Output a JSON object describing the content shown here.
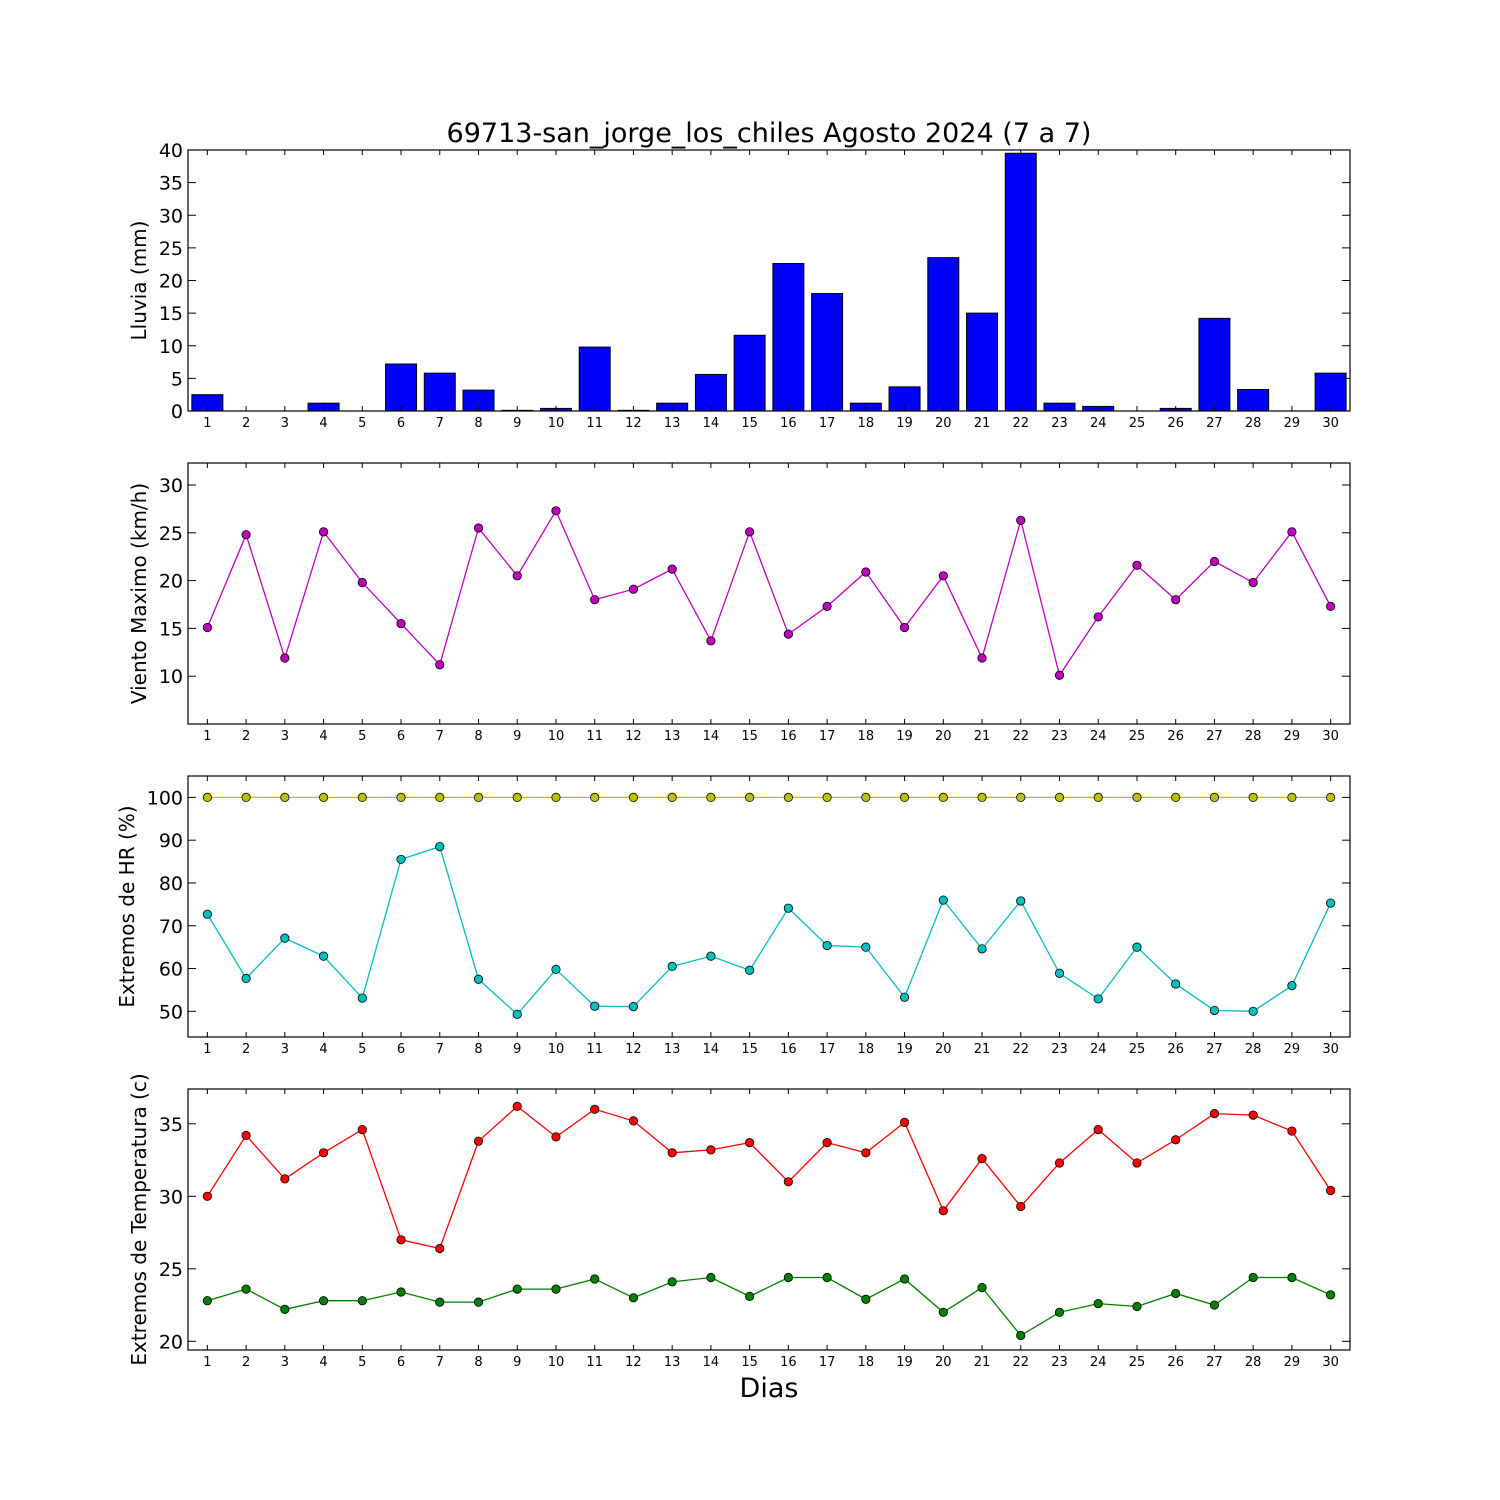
{
  "title": "69713-san_jorge_los_chiles Agosto 2024  (7 a 7)",
  "xlabel": "Dias",
  "chart_data": [
    {
      "type": "bar",
      "ylabel": "Lluvia (mm)",
      "ylim": [
        0,
        40
      ],
      "yticks": [
        0,
        5,
        10,
        15,
        20,
        25,
        30,
        35,
        40
      ],
      "x": [
        1,
        2,
        3,
        4,
        5,
        6,
        7,
        8,
        9,
        10,
        11,
        12,
        13,
        14,
        15,
        16,
        17,
        18,
        19,
        20,
        21,
        22,
        23,
        24,
        25,
        26,
        27,
        28,
        29,
        30
      ],
      "color": "#0000ff",
      "values": [
        2.5,
        0,
        0,
        1.2,
        0,
        7.2,
        5.8,
        3.2,
        0.1,
        0.4,
        9.8,
        0.1,
        1.2,
        5.6,
        11.6,
        22.6,
        18.0,
        1.2,
        3.7,
        23.5,
        15.0,
        39.5,
        1.2,
        0.7,
        0,
        0.4,
        14.2,
        3.3,
        0,
        5.8
      ]
    },
    {
      "type": "line",
      "ylabel": "Viento Maximo (km/h)",
      "ylim": [
        5,
        32.3
      ],
      "yticks": [
        10,
        15,
        20,
        25,
        30
      ],
      "x": [
        1,
        2,
        3,
        4,
        5,
        6,
        7,
        8,
        9,
        10,
        11,
        12,
        13,
        14,
        15,
        16,
        17,
        18,
        19,
        20,
        21,
        22,
        23,
        24,
        25,
        26,
        27,
        28,
        29,
        30
      ],
      "series": [
        {
          "color": "#bf00bf",
          "values": [
            15.1,
            24.8,
            11.9,
            25.1,
            19.8,
            15.5,
            11.2,
            25.5,
            20.5,
            27.3,
            18.0,
            19.1,
            21.2,
            13.7,
            25.1,
            14.4,
            17.3,
            20.9,
            15.1,
            20.5,
            11.9,
            26.3,
            10.1,
            16.2,
            21.6,
            18.0,
            22.0,
            19.8,
            25.1,
            17.3
          ]
        }
      ]
    },
    {
      "type": "line",
      "ylabel": "Extremos de HR (%)",
      "ylim": [
        44,
        105
      ],
      "yticks": [
        50,
        60,
        70,
        80,
        90,
        100
      ],
      "x": [
        1,
        2,
        3,
        4,
        5,
        6,
        7,
        8,
        9,
        10,
        11,
        12,
        13,
        14,
        15,
        16,
        17,
        18,
        19,
        20,
        21,
        22,
        23,
        24,
        25,
        26,
        27,
        28,
        29,
        30
      ],
      "series": [
        {
          "color": "#bfbf00",
          "values": [
            100,
            100,
            100,
            100,
            100,
            100,
            100,
            100,
            100,
            100,
            100,
            100,
            100,
            100,
            100,
            100,
            100,
            100,
            100,
            100,
            100,
            100,
            100,
            100,
            100,
            100,
            100,
            100,
            100,
            100
          ]
        },
        {
          "color": "#00bfbf",
          "values": [
            72.7,
            57.7,
            67.1,
            62.9,
            53.1,
            85.5,
            88.5,
            57.5,
            49.3,
            59.8,
            51.2,
            51.1,
            60.5,
            62.9,
            59.6,
            74.1,
            65.4,
            65.0,
            53.3,
            76.0,
            64.6,
            75.8,
            58.9,
            52.9,
            65.0,
            56.4,
            50.2,
            50.0,
            56.0,
            75.3
          ]
        }
      ]
    },
    {
      "type": "line",
      "ylabel": "Extremos de Temperatura (c)",
      "ylim": [
        19.4,
        37.4
      ],
      "yticks": [
        20,
        25,
        30,
        35
      ],
      "x": [
        1,
        2,
        3,
        4,
        5,
        6,
        7,
        8,
        9,
        10,
        11,
        12,
        13,
        14,
        15,
        16,
        17,
        18,
        19,
        20,
        21,
        22,
        23,
        24,
        25,
        26,
        27,
        28,
        29,
        30
      ],
      "series": [
        {
          "color": "#ff0000",
          "values": [
            30.0,
            34.2,
            31.2,
            33.0,
            34.6,
            27.0,
            26.4,
            33.8,
            36.2,
            34.1,
            36.0,
            35.2,
            33.0,
            33.2,
            33.7,
            31.0,
            33.7,
            33.0,
            35.1,
            29.0,
            32.6,
            29.3,
            32.3,
            34.6,
            32.3,
            33.9,
            35.7,
            35.6,
            34.5,
            30.4
          ]
        },
        {
          "color": "#007f00",
          "values": [
            22.8,
            23.6,
            22.2,
            22.8,
            22.8,
            23.4,
            22.7,
            22.7,
            23.6,
            23.6,
            24.3,
            23.0,
            24.1,
            24.4,
            23.1,
            24.4,
            24.4,
            22.9,
            24.3,
            22.0,
            23.7,
            20.4,
            22.0,
            22.6,
            22.4,
            23.3,
            22.5,
            24.4,
            24.4,
            23.2
          ]
        }
      ]
    }
  ]
}
